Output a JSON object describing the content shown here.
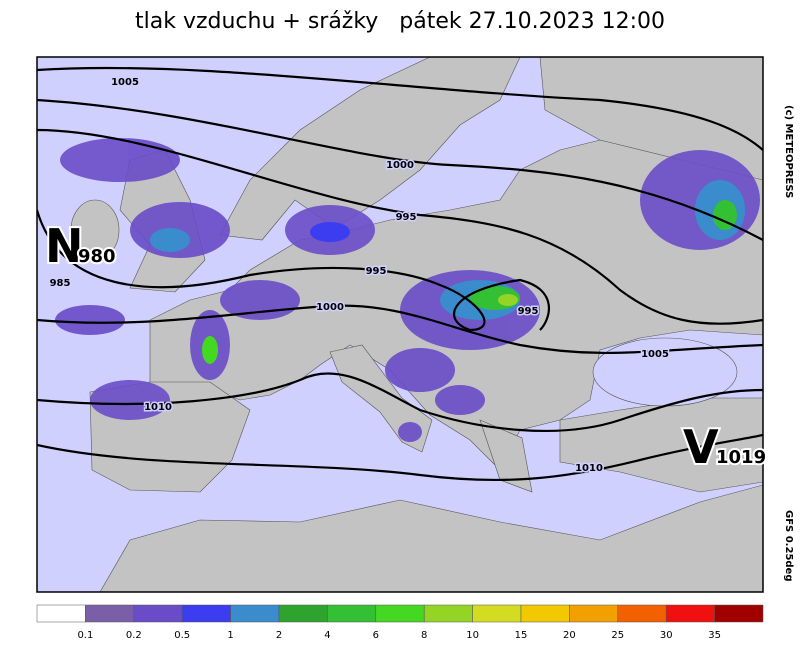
{
  "title": "tlak vzduchu + srážky   pátek 27.10.2023 12:00",
  "credit": "(c) METEOPRESS",
  "model": "GFS 0.25deg",
  "isobar_labels": [
    "1005",
    "1000",
    "995",
    "995",
    "985",
    "1000",
    "995",
    "1005",
    "1010",
    "1010"
  ],
  "centers": [
    {
      "letter": "N",
      "value": "980"
    },
    {
      "letter": "V",
      "value": "1019"
    }
  ],
  "legend": {
    "colors": [
      "#ffffff",
      "#7b5ea8",
      "#6a4cc8",
      "#3c3cf0",
      "#3a8ccc",
      "#2ea42e",
      "#34c034",
      "#44d822",
      "#94d424",
      "#d4dc22",
      "#f2c800",
      "#f2a000",
      "#f26000",
      "#f01010",
      "#a00000"
    ],
    "labels": [
      "0.1",
      "0.2",
      "0.5",
      "1",
      "2",
      "4",
      "6",
      "8",
      "10",
      "15",
      "20",
      "25",
      "30",
      "35"
    ]
  }
}
